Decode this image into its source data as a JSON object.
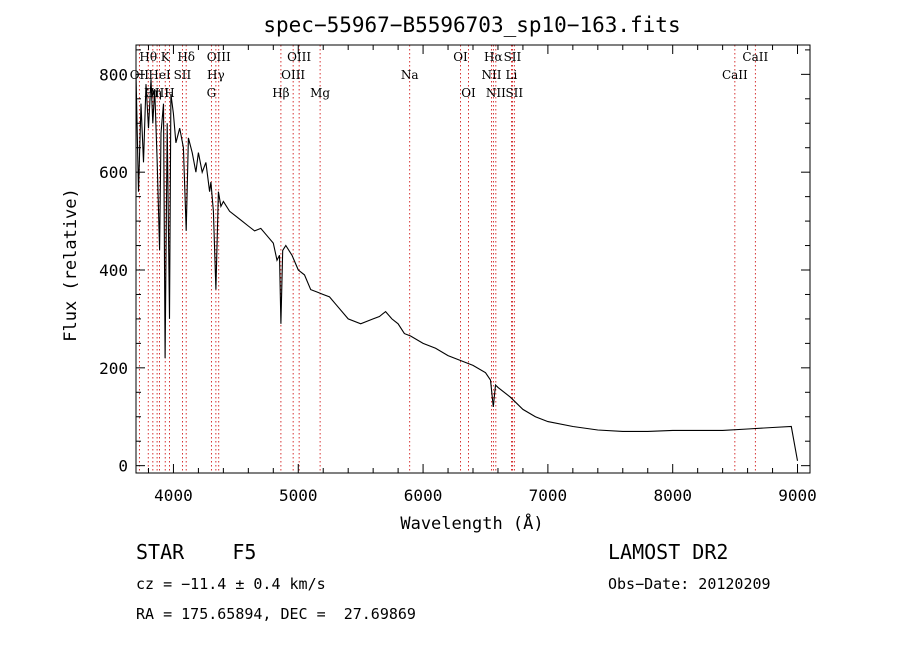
{
  "chart_data": {
    "type": "line",
    "title": "spec−55967−B5596703_sp10−163.fits",
    "xlabel": "Wavelength (Å)",
    "ylabel": "Flux (relative)",
    "xlim": [
      3700,
      9100
    ],
    "ylim": [
      -15,
      860
    ],
    "xticks": [
      4000,
      5000,
      6000,
      7000,
      8000,
      9000
    ],
    "yticks": [
      0,
      200,
      400,
      600,
      800
    ],
    "grid": false,
    "series": [
      {
        "x": [
          3700,
          3720,
          3740,
          3760,
          3780,
          3800,
          3820,
          3835,
          3850,
          3870,
          3889,
          3900,
          3920,
          3933,
          3950,
          3968,
          3980,
          4000,
          4020,
          4050,
          4080,
          4102,
          4120,
          4150,
          4180,
          4200,
          4230,
          4260,
          4290,
          4300,
          4320,
          4340,
          4360,
          4380,
          4400,
          4450,
          4500,
          4550,
          4600,
          4650,
          4700,
          4750,
          4800,
          4830,
          4850,
          4861,
          4875,
          4900,
          4950,
          5000,
          5050,
          5100,
          5150,
          5200,
          5250,
          5300,
          5400,
          5500,
          5600,
          5650,
          5700,
          5750,
          5800,
          5850,
          5900,
          6000,
          6100,
          6200,
          6300,
          6400,
          6500,
          6540,
          6563,
          6580,
          6600,
          6700,
          6800,
          6900,
          7000,
          7200,
          7400,
          7600,
          7800,
          8000,
          8200,
          8400,
          8600,
          8800,
          8950,
          9000
        ],
        "y": [
          800,
          560,
          740,
          620,
          780,
          690,
          790,
          700,
          770,
          620,
          440,
          680,
          740,
          220,
          700,
          300,
          760,
          720,
          660,
          690,
          650,
          480,
          670,
          640,
          600,
          640,
          600,
          620,
          560,
          580,
          520,
          360,
          560,
          530,
          540,
          520,
          510,
          500,
          490,
          480,
          485,
          470,
          455,
          420,
          430,
          290,
          440,
          450,
          430,
          400,
          390,
          360,
          355,
          350,
          345,
          330,
          300,
          290,
          300,
          305,
          315,
          300,
          290,
          270,
          265,
          250,
          240,
          225,
          215,
          205,
          190,
          175,
          120,
          165,
          160,
          140,
          115,
          100,
          90,
          80,
          73,
          70,
          70,
          72,
          72,
          72,
          75,
          78,
          80,
          10
        ]
      }
    ],
    "lines": [
      {
        "label": "Hθ",
        "x": 3798,
        "row": 1
      },
      {
        "label": "OII",
        "x": 3727,
        "row": 2
      },
      {
        "label": "OIII",
        "x": 3869,
        "row": 3
      },
      {
        "label": "Hη",
        "x": 3835,
        "row": 3
      },
      {
        "label": "K",
        "x": 3934,
        "row": 1
      },
      {
        "label": "HeI",
        "x": 3889,
        "row": 2
      },
      {
        "label": "H",
        "x": 3968,
        "row": 3
      },
      {
        "label": "SII",
        "x": 4072,
        "row": 2
      },
      {
        "label": "Hδ",
        "x": 4102,
        "row": 1
      },
      {
        "label": "OIII",
        "x": 4363,
        "row": 1
      },
      {
        "label": "Hγ",
        "x": 4340,
        "row": 2
      },
      {
        "label": "G",
        "x": 4304,
        "row": 3
      },
      {
        "label": "Hβ",
        "x": 4861,
        "row": 3
      },
      {
        "label": "OIII",
        "x": 5007,
        "row": 1
      },
      {
        "label": "OIII",
        "x": 4959,
        "row": 2
      },
      {
        "label": "Mg",
        "x": 5175,
        "row": 3
      },
      {
        "label": "Na",
        "x": 5893,
        "row": 2
      },
      {
        "label": "OI",
        "x": 6300,
        "row": 1
      },
      {
        "label": "OI",
        "x": 6364,
        "row": 3
      },
      {
        "label": "Hα",
        "x": 6563,
        "row": 1
      },
      {
        "label": "NII",
        "x": 6548,
        "row": 2
      },
      {
        "label": "NII",
        "x": 6583,
        "row": 3
      },
      {
        "label": "SII",
        "x": 6716,
        "row": 1
      },
      {
        "label": "SII",
        "x": 6731,
        "row": 3
      },
      {
        "label": "Li",
        "x": 6708,
        "row": 2
      },
      {
        "label": "CaII",
        "x": 8662,
        "row": 1
      },
      {
        "label": "CaII",
        "x": 8498,
        "row": 2
      }
    ]
  },
  "info": {
    "class": "STAR    F5",
    "survey": "LAMOST DR2",
    "cz": "cz = −11.4 ± 0.4 km/s",
    "obs_date": "Obs−Date: 20120209",
    "coords": "RA = 175.65894, DEC =  27.69869"
  },
  "colors": {
    "spectrum": "#000000",
    "line_marker": "#cc0000",
    "axes": "#000000"
  }
}
